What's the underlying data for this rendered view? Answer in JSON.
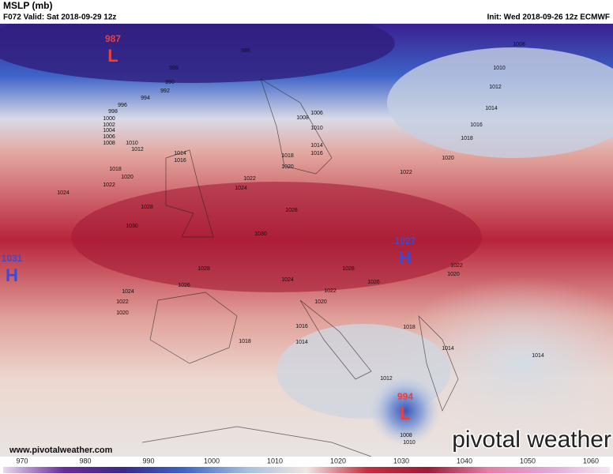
{
  "header": {
    "title": "MSLP (mb)",
    "valid": "F072 Valid: Sat 2018-09-29 12z",
    "init": "Init: Wed 2018-09-26 12z ECMWF"
  },
  "centers": [
    {
      "label": "L",
      "value": "987"
    },
    {
      "label": "H",
      "value": "1031"
    },
    {
      "label": "H",
      "value": "1027"
    },
    {
      "label": "L",
      "value": "994"
    }
  ],
  "isobar_labels": [
    986,
    988,
    990,
    992,
    994,
    996,
    998,
    1000,
    1002,
    1004,
    1006,
    1008,
    1010,
    1012,
    1014,
    1016,
    1018,
    1020,
    1022,
    1024,
    1028,
    1030,
    1026,
    1024,
    1022,
    1020,
    1030,
    1028,
    1028,
    1022,
    1024,
    1024,
    1022,
    1020,
    1028,
    1026,
    1022,
    1020,
    1018,
    1016,
    1014,
    1010,
    1008,
    1006,
    1010,
    1008,
    1012,
    1014,
    1016,
    1018,
    1020,
    1022,
    1020,
    1018,
    1016,
    1014,
    1018,
    1014,
    1014,
    1012,
    1008,
    1010
  ],
  "footer": {
    "url": "www.pivotalweather.com",
    "logo": "pivotal weather"
  },
  "colorbar": {
    "ticks": [
      970,
      980,
      990,
      1000,
      1010,
      1020,
      1030,
      1040,
      1050,
      1060
    ]
  }
}
